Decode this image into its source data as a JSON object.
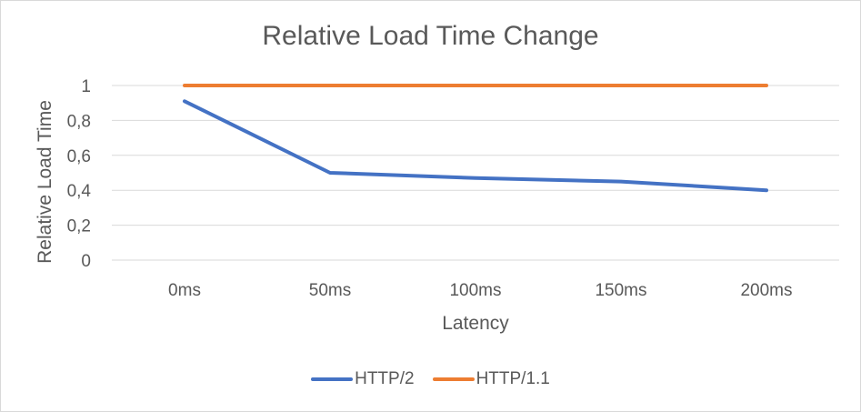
{
  "chart_data": {
    "type": "line",
    "title": "Relative Load Time Change",
    "xlabel": "Latency",
    "ylabel": "Relative Load Time",
    "categories": [
      "0ms",
      "50ms",
      "100ms",
      "150ms",
      "200ms"
    ],
    "y_ticks": [
      "0",
      "0,2",
      "0,4",
      "0,6",
      "0,8",
      "1"
    ],
    "ylim": [
      0,
      1
    ],
    "grid": true,
    "legend_position": "bottom",
    "series": [
      {
        "name": "HTTP/2",
        "color": "#4472C4",
        "values": [
          0.91,
          0.5,
          0.47,
          0.45,
          0.4
        ]
      },
      {
        "name": "HTTP/1.1",
        "color": "#ED7D31",
        "values": [
          1,
          1,
          1,
          1,
          1
        ]
      }
    ]
  }
}
